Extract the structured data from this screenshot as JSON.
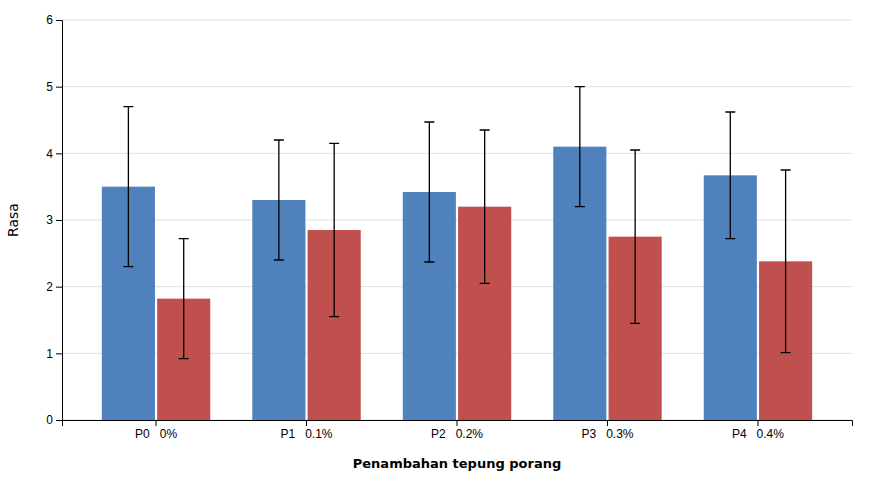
{
  "chart_data": {
    "type": "bar",
    "categories": [
      "P0   0%",
      "P1   0.1%",
      "P2   0.2%",
      "P3   0.3%",
      "P4   0.4%"
    ],
    "series": [
      {
        "color": "#4F81BD",
        "values": [
          3.5,
          3.3,
          3.42,
          4.1,
          3.67
        ],
        "errors": [
          1.2,
          0.9,
          1.05,
          0.9,
          0.95
        ]
      },
      {
        "color": "#C0504D",
        "values": [
          1.82,
          2.85,
          3.2,
          2.75,
          2.38
        ],
        "errors": [
          0.9,
          1.3,
          1.15,
          1.3,
          1.37
        ]
      }
    ],
    "xlabel": "Penambahan tepung porang",
    "ylabel": "Rasa",
    "ylim": [
      0,
      6
    ],
    "yticks": [
      0,
      1,
      2,
      3,
      4,
      5,
      6
    ],
    "grid": true
  }
}
